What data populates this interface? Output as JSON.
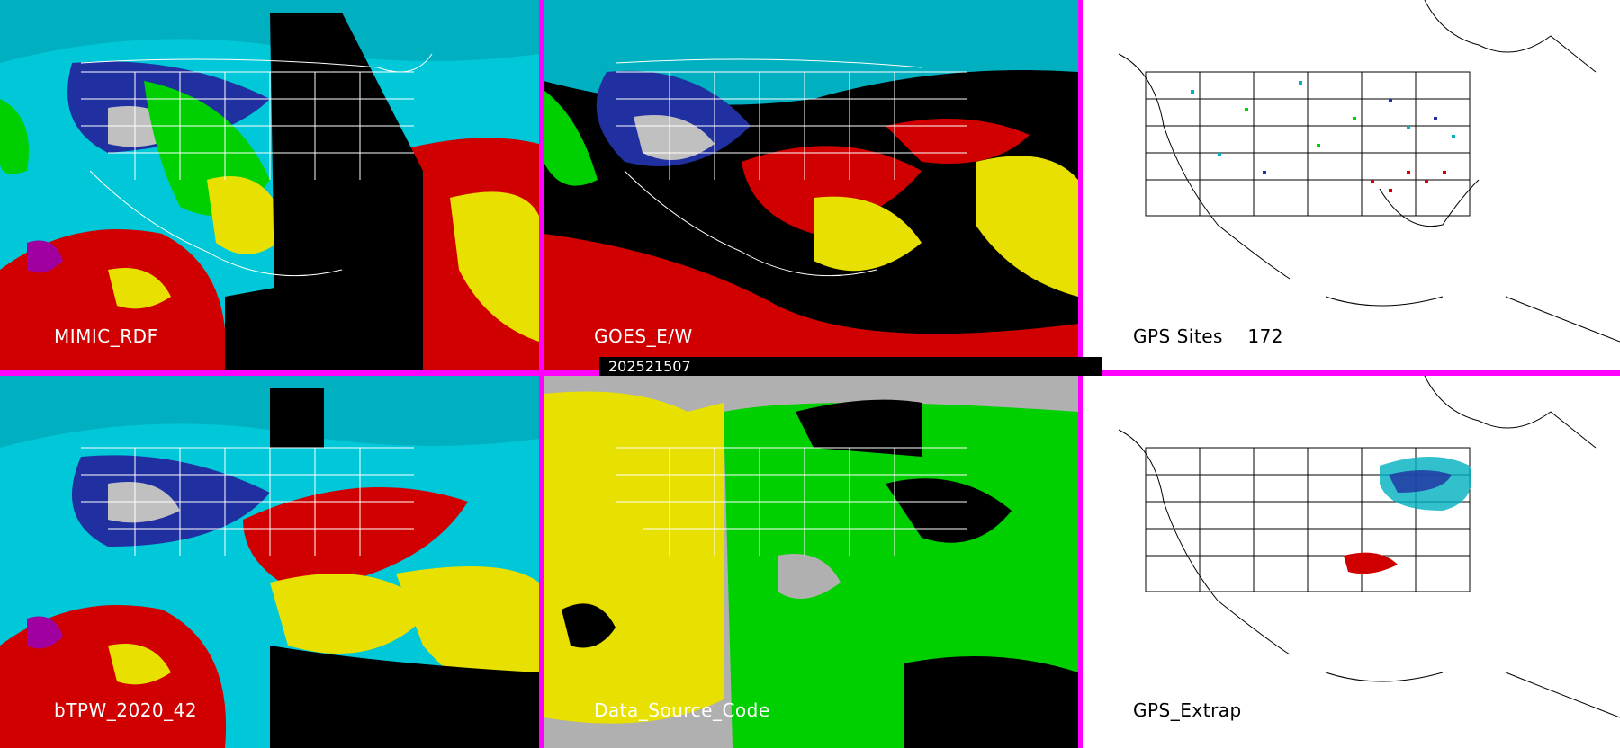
{
  "timestamp": "202521507",
  "panels": [
    {
      "id": "mimic",
      "label": "MIMIC_RDF",
      "theme": "tpw"
    },
    {
      "id": "goes",
      "label": "GOES_E/W",
      "theme": "goes"
    },
    {
      "id": "gps_sites",
      "label": "GPS Sites    172",
      "theme": "gps"
    },
    {
      "id": "btpw",
      "label": "bTPW_2020_42",
      "theme": "tpw2"
    },
    {
      "id": "source",
      "label": "Data_Source_Code",
      "theme": "source"
    },
    {
      "id": "gps_extrap",
      "label": "GPS_Extrap",
      "theme": "gpsx"
    }
  ],
  "colors": {
    "divider": "#ff00ff",
    "tpw_scale": [
      "#8a6a3a",
      "#c0c0c0",
      "#2030a0",
      "#00d0e0",
      "#00e000",
      "#e8e000",
      "#d00000",
      "#a000a0"
    ],
    "source_scale": [
      "#b0b0b0",
      "#e8e000",
      "#00d000",
      "#000000"
    ]
  }
}
